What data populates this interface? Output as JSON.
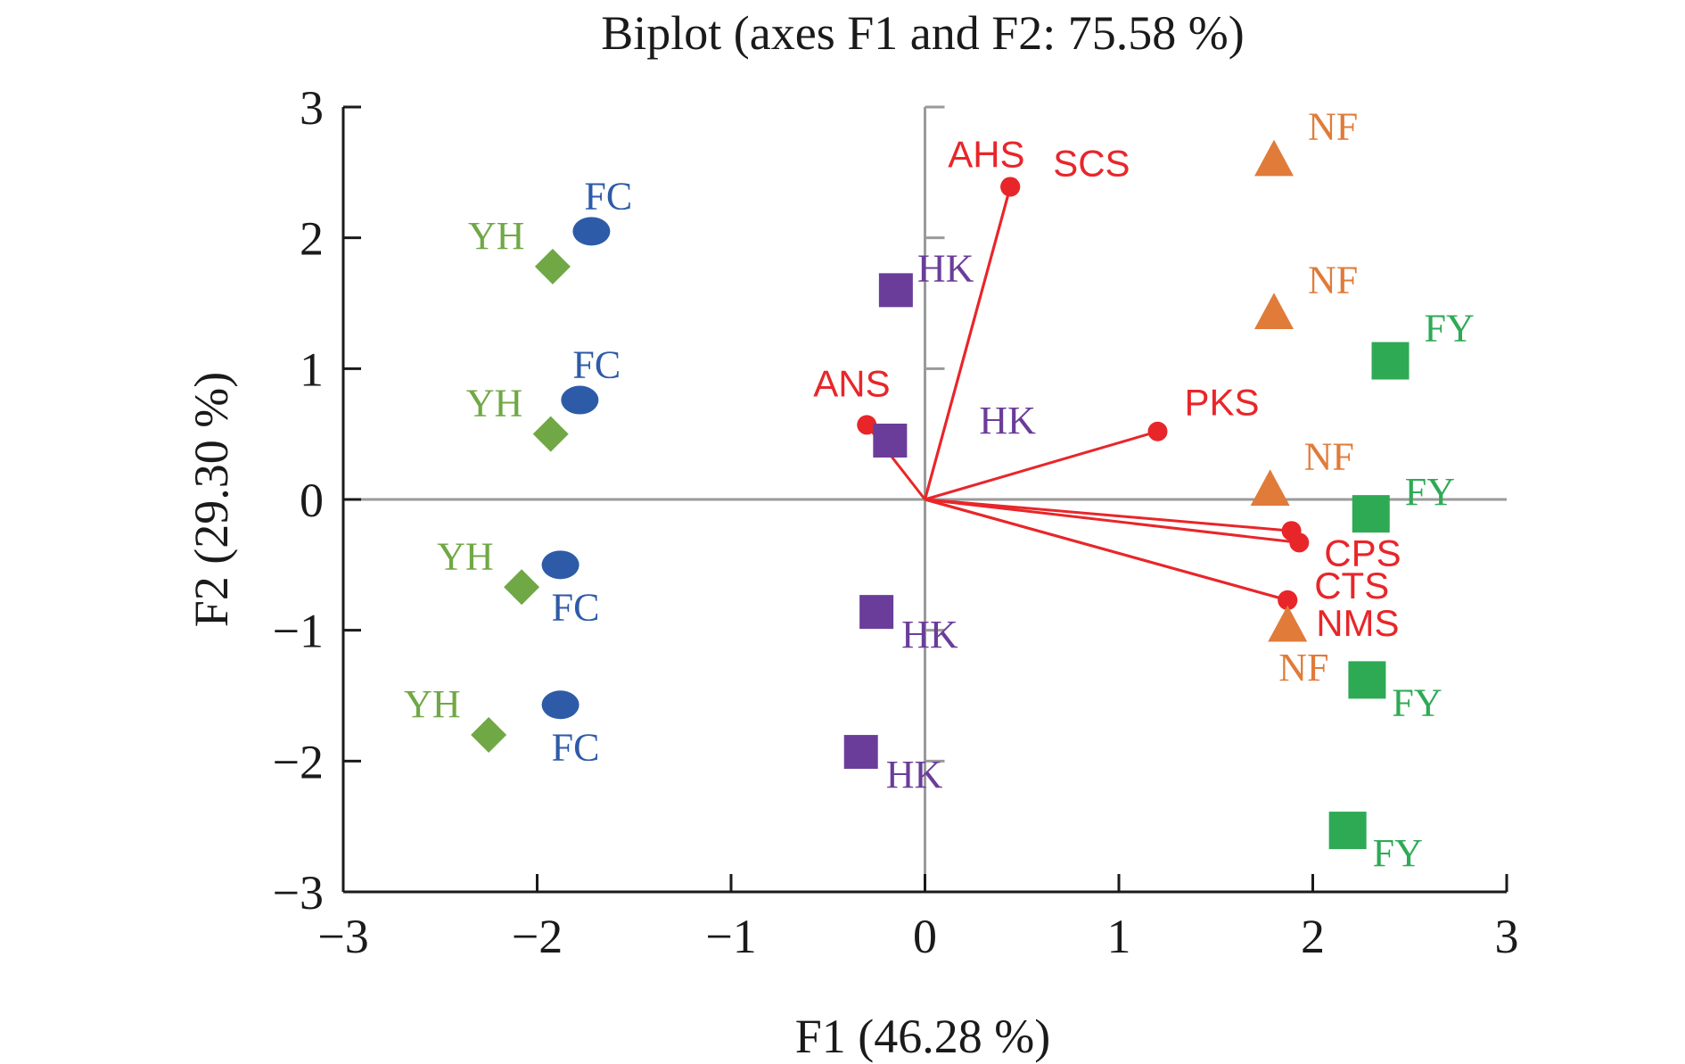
{
  "chart_data": {
    "type": "scatter",
    "title": "Biplot (axes F1 and F2: 75.58 %)",
    "xlabel": "F1 (46.28 %)",
    "ylabel": "F2 (29.30 %)",
    "xlim": [
      -3,
      3
    ],
    "ylim": [
      -3,
      3
    ],
    "x_ticks": [
      -3,
      -2,
      -1,
      0,
      1,
      2,
      3
    ],
    "y_ticks": [
      -3,
      -2,
      -1,
      0,
      1,
      2,
      3
    ],
    "x_tick_labels": [
      "−3",
      "−2",
      "−1",
      "0",
      "1",
      "2",
      "3"
    ],
    "y_tick_labels": [
      "−3",
      "−2",
      "−1",
      "0",
      "1",
      "2",
      "3"
    ],
    "grid": false,
    "colors": {
      "YH": "#70a845",
      "FC": "#2d5ba8",
      "HK": "#6a3d9a",
      "NF": "#e07b39",
      "FY": "#2eaa55",
      "vector": "#e8262a",
      "axis": "#1a1a1a",
      "zero_line": "#9a9a9a"
    },
    "series": [
      {
        "name": "YH",
        "marker": "diamond",
        "points": [
          {
            "x": -1.92,
            "y": 1.78,
            "label": "YH",
            "label_pos": "upper-left"
          },
          {
            "x": -1.93,
            "y": 0.5,
            "label": "YH",
            "label_pos": "upper-left"
          },
          {
            "x": -2.08,
            "y": -0.67,
            "label": "YH",
            "label_pos": "upper-left"
          },
          {
            "x": -2.25,
            "y": -1.8,
            "label": "YH",
            "label_pos": "upper-left"
          }
        ]
      },
      {
        "name": "FC",
        "marker": "circle",
        "points": [
          {
            "x": -1.72,
            "y": 2.05,
            "label": "FC",
            "label_pos": "above"
          },
          {
            "x": -1.78,
            "y": 0.76,
            "label": "FC",
            "label_pos": "above"
          },
          {
            "x": -1.88,
            "y": -0.5,
            "label": "FC",
            "label_pos": "below"
          },
          {
            "x": -1.88,
            "y": -1.57,
            "label": "FC",
            "label_pos": "below"
          }
        ]
      },
      {
        "name": "HK",
        "marker": "square",
        "points": [
          {
            "x": -0.15,
            "y": 1.6,
            "label": "HK",
            "label_pos": "right"
          },
          {
            "x": -0.18,
            "y": 0.45,
            "label": "HK",
            "label_pos": "far-right"
          },
          {
            "x": -0.25,
            "y": -0.86,
            "label": "HK",
            "label_pos": "below-right"
          },
          {
            "x": -0.33,
            "y": -1.93,
            "label": "HK",
            "label_pos": "below-right"
          }
        ]
      },
      {
        "name": "NF",
        "marker": "triangle",
        "points": [
          {
            "x": 1.8,
            "y": 2.6,
            "label": "NF",
            "label_pos": "upper-right"
          },
          {
            "x": 1.8,
            "y": 1.43,
            "label": "NF",
            "label_pos": "upper-right"
          },
          {
            "x": 1.78,
            "y": 0.08,
            "label": "NF",
            "label_pos": "upper-right"
          },
          {
            "x": 1.87,
            "y": -0.96,
            "label": "NF",
            "label_pos": "below"
          }
        ]
      },
      {
        "name": "FY",
        "marker": "square",
        "points": [
          {
            "x": 2.4,
            "y": 1.06,
            "label": "FY",
            "label_pos": "upper-right"
          },
          {
            "x": 2.3,
            "y": -0.11,
            "label": "FY",
            "label_pos": "right"
          },
          {
            "x": 2.28,
            "y": -1.38,
            "label": "FY",
            "label_pos": "below-right"
          },
          {
            "x": 2.18,
            "y": -2.53,
            "label": "FY",
            "label_pos": "below-right"
          }
        ]
      }
    ],
    "vectors": [
      {
        "name": "AHS",
        "x": 0.44,
        "y": 2.39,
        "label": "AHS",
        "label_pos": "ahs"
      },
      {
        "name": "SCS",
        "x": 0.44,
        "y": 2.39,
        "label": "SCS",
        "label_pos": "scs"
      },
      {
        "name": "ANS",
        "x": -0.3,
        "y": 0.57,
        "label": "ANS",
        "label_pos": "ans"
      },
      {
        "name": "PKS",
        "x": 1.2,
        "y": 0.52,
        "label": "PKS",
        "label_pos": "pks"
      },
      {
        "name": "CPS",
        "x": 1.89,
        "y": -0.24,
        "label": "",
        "label_pos": "none"
      },
      {
        "name": "CPS-2",
        "x": 1.93,
        "y": -0.33,
        "label": "CPS",
        "label_pos": "cps"
      },
      {
        "name": "CTS",
        "x": 1.87,
        "y": -0.77,
        "label": "CTS",
        "label_pos": "cts"
      },
      {
        "name": "NMS",
        "x": 1.87,
        "y": -0.77,
        "label": "NMS",
        "label_pos": "nms"
      }
    ]
  }
}
